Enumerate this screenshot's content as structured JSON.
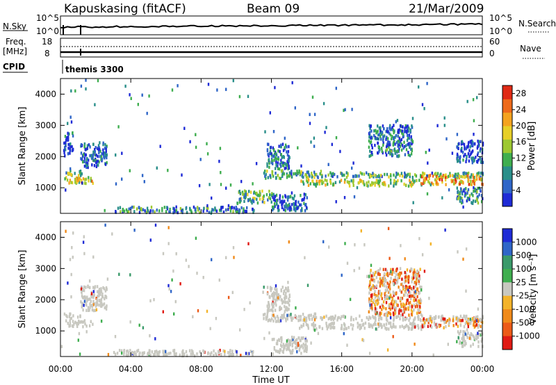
{
  "header": {
    "station": "Kapuskasing (fitACF)",
    "beam": "Beam 09",
    "date": "21/Mar/2009"
  },
  "strip_labels": {
    "nsky": "N.Sky",
    "nsky_top": "10^5",
    "nsky_bot": "10^0",
    "nsearch": "N.Search",
    "nsearch_top": "10^5",
    "nsearch_bot": "10^0",
    "freq_top": "Freq.",
    "freq_unit": "[MHz]",
    "freq_hi": "18",
    "freq_lo": "8",
    "nave": "Nave",
    "nave_hi": "60",
    "nave_lo": "0",
    "cpid": "CPID",
    "mode": "themis 3300"
  },
  "chart_data": [
    {
      "type": "heatmap",
      "name": "power",
      "ylabel": "Slant Range [km]",
      "xlabel": "Time UT",
      "x_ticks": [
        "00:00",
        "04:00",
        "08:00",
        "12:00",
        "16:00",
        "20:00",
        "00:00"
      ],
      "xlim_hours": [
        0,
        24
      ],
      "y_ticks": [
        1000,
        2000,
        3000,
        4000
      ],
      "ylim": [
        180,
        4500
      ],
      "colorbar": {
        "label": "Power [dB]",
        "ticks": [
          "4",
          "8",
          "12",
          "16",
          "20",
          "24",
          "28"
        ],
        "range": [
          0,
          30
        ],
        "colors": [
          "#1f2bd6",
          "#2f66c8",
          "#2a8f8a",
          "#3fae4f",
          "#9dc832",
          "#e7cf28",
          "#f4a31f",
          "#ee6a1a",
          "#e02a15"
        ]
      },
      "bands": [
        {
          "t0": 0.15,
          "t1": 1.9,
          "r0": 1130,
          "r1": 1340,
          "level": 0.55
        },
        {
          "t0": 0.15,
          "t1": 1.2,
          "r0": 1380,
          "r1": 1560,
          "level": 0.45
        },
        {
          "t0": 1.1,
          "t1": 2.6,
          "r0": 1650,
          "r1": 2450,
          "level": 0.15
        },
        {
          "t0": 0.15,
          "t1": 0.7,
          "r0": 2000,
          "r1": 2800,
          "level": 0.1
        },
        {
          "t0": 11.5,
          "t1": 15.0,
          "r0": 1300,
          "r1": 1550,
          "level": 0.35
        },
        {
          "t0": 11.7,
          "t1": 13.0,
          "r0": 1600,
          "r1": 2400,
          "level": 0.2
        },
        {
          "t0": 13.5,
          "t1": 20.5,
          "r0": 1050,
          "r1": 1250,
          "level": 0.5
        },
        {
          "t0": 15.0,
          "t1": 24.0,
          "r0": 1330,
          "r1": 1480,
          "level": 0.35
        },
        {
          "t0": 20.5,
          "t1": 24.0,
          "r0": 1100,
          "r1": 1400,
          "level": 0.7
        },
        {
          "t0": 3.0,
          "t1": 11.0,
          "r0": 200,
          "r1": 380,
          "level": 0.25
        },
        {
          "t0": 10.0,
          "t1": 12.0,
          "r0": 500,
          "r1": 900,
          "level": 0.4
        },
        {
          "t0": 12.0,
          "t1": 14.0,
          "r0": 250,
          "r1": 800,
          "level": 0.15
        },
        {
          "t0": 17.5,
          "t1": 20.0,
          "r0": 2000,
          "r1": 3000,
          "level": 0.2
        },
        {
          "t0": 22.5,
          "t1": 24.0,
          "r0": 500,
          "r1": 1000,
          "level": 0.3
        },
        {
          "t0": 22.5,
          "t1": 24.0,
          "r0": 1800,
          "r1": 2500,
          "level": 0.1
        }
      ]
    },
    {
      "type": "heatmap",
      "name": "velocity",
      "ylabel": "Slant Range [km]",
      "xlabel": "Time UT",
      "x_ticks": [
        "00:00",
        "04:00",
        "08:00",
        "12:00",
        "16:00",
        "20:00",
        "00:00"
      ],
      "xlim_hours": [
        0,
        24
      ],
      "y_ticks": [
        1000,
        2000,
        3000,
        4000
      ],
      "ylim": [
        180,
        4500
      ],
      "colorbar": {
        "label": "Velocity [m s⁻¹]",
        "ticks": [
          "1000",
          "500",
          "100",
          "25",
          "-25",
          "-100",
          "-500",
          "-1000"
        ],
        "colors": [
          "#1f2bd6",
          "#2f66c8",
          "#3a9a6a",
          "#3fae4f",
          "#c8c8c0",
          "#f3b32a",
          "#f08a1a",
          "#ec5a18",
          "#e01a14"
        ]
      },
      "bands": [
        {
          "t0": 0.15,
          "t1": 1.9,
          "r0": 1130,
          "r1": 1340,
          "level": 0.5
        },
        {
          "t0": 0.15,
          "t1": 1.2,
          "r0": 1380,
          "r1": 1560,
          "level": 0.5
        },
        {
          "t0": 1.1,
          "t1": 2.6,
          "r0": 1650,
          "r1": 2450,
          "level": 0.5
        },
        {
          "t0": 11.5,
          "t1": 15.0,
          "r0": 1300,
          "r1": 1550,
          "level": 0.5
        },
        {
          "t0": 11.7,
          "t1": 13.0,
          "r0": 1600,
          "r1": 2400,
          "level": 0.5
        },
        {
          "t0": 13.5,
          "t1": 20.5,
          "r0": 1050,
          "r1": 1250,
          "level": 0.5
        },
        {
          "t0": 15.0,
          "t1": 24.0,
          "r0": 1330,
          "r1": 1480,
          "level": 0.5
        },
        {
          "t0": 20.5,
          "t1": 24.0,
          "r0": 1100,
          "r1": 1400,
          "level": 0.65
        },
        {
          "t0": 3.0,
          "t1": 11.0,
          "r0": 200,
          "r1": 380,
          "level": 0.5
        },
        {
          "t0": 12.0,
          "t1": 14.0,
          "r0": 250,
          "r1": 800,
          "level": 0.5
        },
        {
          "t0": 17.5,
          "t1": 20.5,
          "r0": 1500,
          "r1": 3000,
          "level": 0.8
        },
        {
          "t0": 22.5,
          "t1": 24.0,
          "r0": 500,
          "r1": 1000,
          "level": 0.5
        }
      ]
    }
  ]
}
